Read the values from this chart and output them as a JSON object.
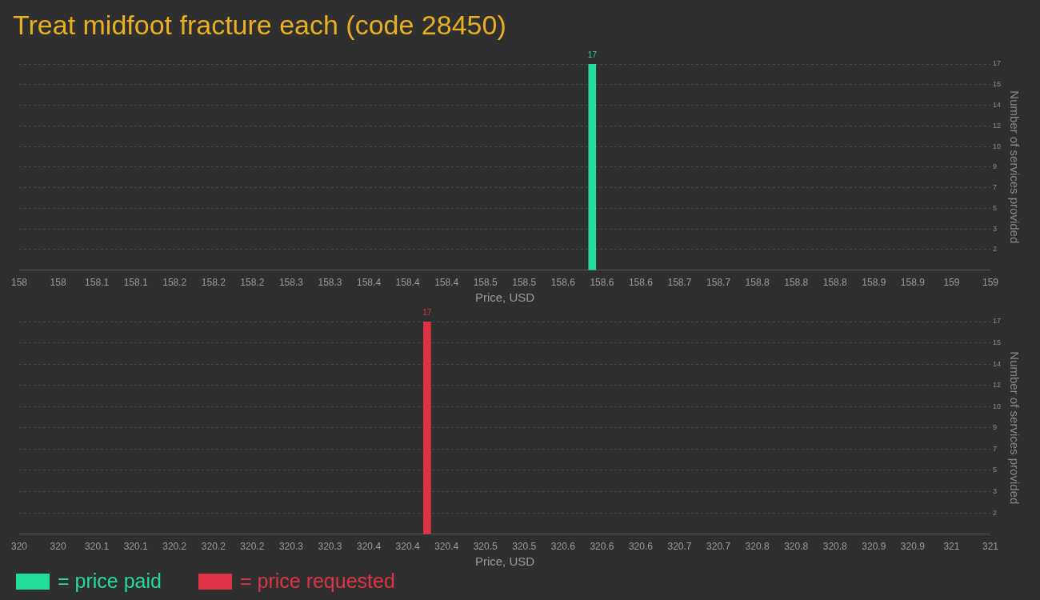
{
  "chart_data": [
    {
      "type": "bar",
      "title": "Treat midfoot fracture each (code 28450)",
      "xlabel": "Price, USD",
      "ylabel": "Number of services provided",
      "x": [
        158.59
      ],
      "series": [
        {
          "name": "= price paid",
          "color": "#22dd99",
          "values": [
            17
          ]
        }
      ],
      "xlim": [
        158,
        159
      ],
      "xticks": [
        {
          "value": 158,
          "label": "158"
        },
        {
          "value": 158.04,
          "label": "158"
        },
        {
          "value": 158.08,
          "label": "158.1"
        },
        {
          "value": 158.12,
          "label": "158.1"
        },
        {
          "value": 158.16,
          "label": "158.2"
        },
        {
          "value": 158.2,
          "label": "158.2"
        },
        {
          "value": 158.24,
          "label": "158.2"
        },
        {
          "value": 158.28,
          "label": "158.3"
        },
        {
          "value": 158.32,
          "label": "158.3"
        },
        {
          "value": 158.36,
          "label": "158.4"
        },
        {
          "value": 158.4,
          "label": "158.4"
        },
        {
          "value": 158.44,
          "label": "158.4"
        },
        {
          "value": 158.48,
          "label": "158.5"
        },
        {
          "value": 158.52,
          "label": "158.5"
        },
        {
          "value": 158.56,
          "label": "158.6"
        },
        {
          "value": 158.6,
          "label": "158.6"
        },
        {
          "value": 158.64,
          "label": "158.6"
        },
        {
          "value": 158.68,
          "label": "158.7"
        },
        {
          "value": 158.72,
          "label": "158.7"
        },
        {
          "value": 158.76,
          "label": "158.8"
        },
        {
          "value": 158.8,
          "label": "158.8"
        },
        {
          "value": 158.84,
          "label": "158.8"
        },
        {
          "value": 158.88,
          "label": "158.9"
        },
        {
          "value": 158.92,
          "label": "158.9"
        },
        {
          "value": 158.96,
          "label": "159"
        },
        {
          "value": 159,
          "label": "159"
        }
      ],
      "ylim": [
        0,
        17
      ],
      "yticks": [
        {
          "value": 1.7,
          "label": "2"
        },
        {
          "value": 3.4,
          "label": "3"
        },
        {
          "value": 5.1,
          "label": "5"
        },
        {
          "value": 6.8,
          "label": "7"
        },
        {
          "value": 8.5,
          "label": "9"
        },
        {
          "value": 10.2,
          "label": "10"
        },
        {
          "value": 11.9,
          "label": "12"
        },
        {
          "value": 13.6,
          "label": "14"
        },
        {
          "value": 15.3,
          "label": "15"
        },
        17
      ],
      "grid": "y",
      "data_labels": true,
      "legend": "bottom left"
    },
    {
      "type": "bar",
      "xlabel": "Price, USD",
      "ylabel": "Number of services provided",
      "x": [
        320.42
      ],
      "series": [
        {
          "name": "= price requested",
          "color": "#dd3344",
          "values": [
            17
          ]
        }
      ],
      "xlim": [
        320,
        321
      ],
      "xticks": [
        {
          "value": 320,
          "label": "320"
        },
        {
          "value": 320.04,
          "label": "320"
        },
        {
          "value": 320.08,
          "label": "320.1"
        },
        {
          "value": 320.12,
          "label": "320.1"
        },
        {
          "value": 320.16,
          "label": "320.2"
        },
        {
          "value": 320.2,
          "label": "320.2"
        },
        {
          "value": 320.24,
          "label": "320.2"
        },
        {
          "value": 320.28,
          "label": "320.3"
        },
        {
          "value": 320.32,
          "label": "320.3"
        },
        {
          "value": 320.36,
          "label": "320.4"
        },
        {
          "value": 320.4,
          "label": "320.4"
        },
        {
          "value": 320.44,
          "label": "320.4"
        },
        {
          "value": 320.48,
          "label": "320.5"
        },
        {
          "value": 320.52,
          "label": "320.5"
        },
        {
          "value": 320.56,
          "label": "320.6"
        },
        {
          "value": 320.6,
          "label": "320.6"
        },
        {
          "value": 320.64,
          "label": "320.6"
        },
        {
          "value": 320.68,
          "label": "320.7"
        },
        {
          "value": 320.72,
          "label": "320.7"
        },
        {
          "value": 320.76,
          "label": "320.8"
        },
        {
          "value": 320.8,
          "label": "320.8"
        },
        {
          "value": 320.84,
          "label": "320.8"
        },
        {
          "value": 320.88,
          "label": "320.9"
        },
        {
          "value": 320.92,
          "label": "320.9"
        },
        {
          "value": 320.96,
          "label": "321"
        },
        {
          "value": 321,
          "label": "321"
        }
      ],
      "ylim": [
        0,
        17
      ],
      "yticks": [
        {
          "value": 1.7,
          "label": "2"
        },
        {
          "value": 3.4,
          "label": "3"
        },
        {
          "value": 5.1,
          "label": "5"
        },
        {
          "value": 6.8,
          "label": "7"
        },
        {
          "value": 8.5,
          "label": "9"
        },
        {
          "value": 10.2,
          "label": "10"
        },
        {
          "value": 11.9,
          "label": "12"
        },
        {
          "value": 13.6,
          "label": "14"
        },
        {
          "value": 15.3,
          "label": "15"
        },
        17
      ],
      "grid": "y",
      "data_labels": true,
      "legend": "bottom left"
    }
  ]
}
